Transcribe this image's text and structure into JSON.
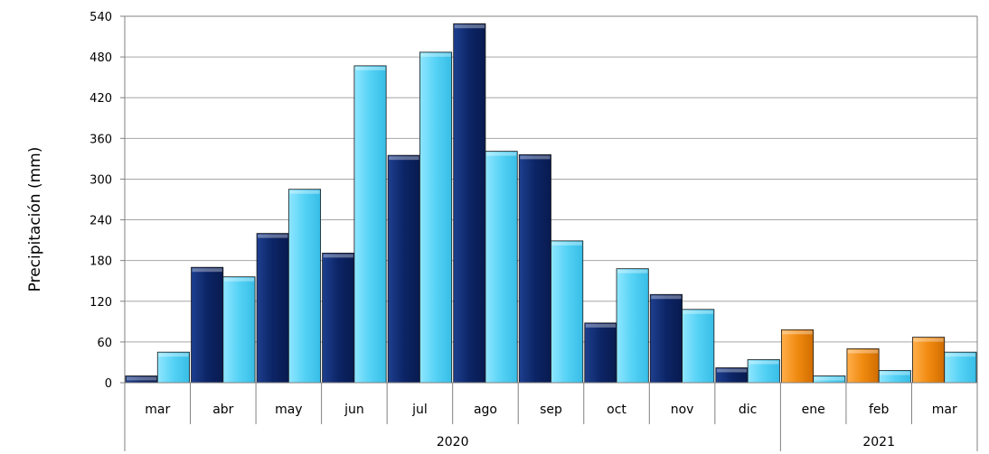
{
  "chart_data": {
    "type": "bar",
    "title": "",
    "xlabel": "",
    "ylabel": "Precipitación (mm)",
    "ylim": [
      0,
      540
    ],
    "yticks": [
      0,
      60,
      120,
      180,
      240,
      300,
      360,
      420,
      480,
      540
    ],
    "grid": true,
    "legend": "none",
    "months": [
      "mar",
      "abr",
      "may",
      "jun",
      "jul",
      "ago",
      "sep",
      "oct",
      "nov",
      "dic",
      "ene",
      "feb",
      "mar"
    ],
    "years": [
      {
        "label": "2020",
        "span": 10
      },
      {
        "label": "2021",
        "span": 3
      }
    ],
    "series": [
      {
        "color": "#0f2a6b",
        "color_2021": "#f08a10",
        "values": [
          10,
          170,
          220,
          191,
          335,
          529,
          336,
          88,
          130,
          22,
          78,
          50,
          67
        ]
      },
      {
        "color": "#55d2f5",
        "values": [
          45,
          156,
          285,
          467,
          487,
          341,
          209,
          168,
          108,
          34,
          10,
          18,
          45
        ]
      }
    ]
  }
}
